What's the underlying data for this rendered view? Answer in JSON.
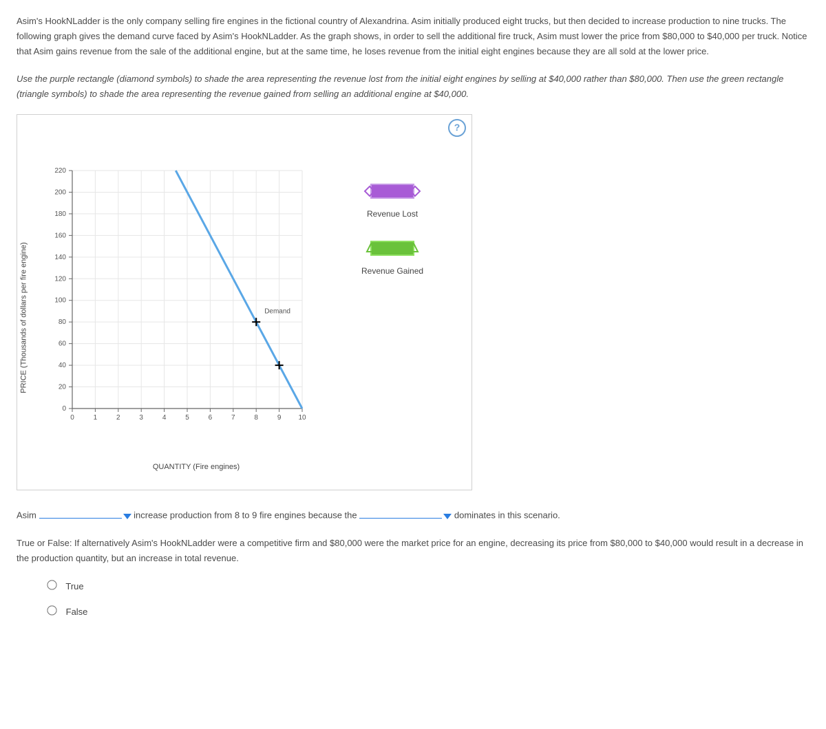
{
  "intro": "Asim's HookNLadder is the only company selling fire engines in the fictional country of Alexandrina. Asim initially produced eight trucks, but then decided to increase production to nine trucks. The following graph gives the demand curve faced by Asim's HookNLadder. As the graph shows, in order to sell the additional fire truck, Asim must lower the price from $80,000 to $40,000 per truck. Notice that Asim gains revenue from the sale of the additional engine, but at the same time, he loses revenue from the initial eight engines because they are all sold at the lower price.",
  "instructions": "Use the purple rectangle (diamond symbols) to shade the area representing the revenue lost from the initial eight engines by selling at $40,000 rather than $80,000. Then use the green rectangle (triangle symbols) to shade the area representing the revenue gained from selling an additional engine at $40,000.",
  "help_label": "?",
  "chart": {
    "type": "line",
    "y_axis_label": "PRICE (Thousands of dollars per fire engine)",
    "x_axis_label": "QUANTITY (Fire engines)",
    "xlim": [
      0,
      10
    ],
    "x_ticks": [
      0,
      1,
      2,
      3,
      4,
      5,
      6,
      7,
      8,
      9,
      10
    ],
    "ylim": [
      0,
      220
    ],
    "y_ticks": [
      0,
      20,
      40,
      60,
      80,
      100,
      120,
      140,
      160,
      180,
      200,
      220
    ],
    "grid_color": "#e6e6e6",
    "axis_color": "#666",
    "background_color": "#ffffff",
    "demand_color": "#5aa7e6",
    "demand_line_width": 3,
    "demand_points": [
      [
        4.5,
        220
      ],
      [
        10,
        0
      ]
    ],
    "demand_label": "Demand",
    "markers": [
      {
        "x": 8,
        "y": 80
      },
      {
        "x": 9,
        "y": 40
      }
    ],
    "marker_style": "plus",
    "marker_color": "#000000"
  },
  "legend": {
    "lost": {
      "label": "Revenue Lost",
      "fill": "#a85bd6",
      "marker": "diamond",
      "marker_color": "#a85bd6"
    },
    "gained": {
      "label": "Revenue Gained",
      "fill": "#6ac23b",
      "marker": "triangle",
      "marker_color": "#6ac23b"
    }
  },
  "sentence": {
    "lead": "Asim",
    "mid": "increase production from 8 to 9 fire engines because the",
    "tail": "dominates in this scenario."
  },
  "tf_question": "True or False: If alternatively Asim's HookNLadder were a competitive firm and $80,000 were the market price for an engine, decreasing its price from $80,000 to $40,000 would result in a decrease in the production quantity, but an increase in total revenue.",
  "radio": {
    "true": "True",
    "false": "False"
  }
}
